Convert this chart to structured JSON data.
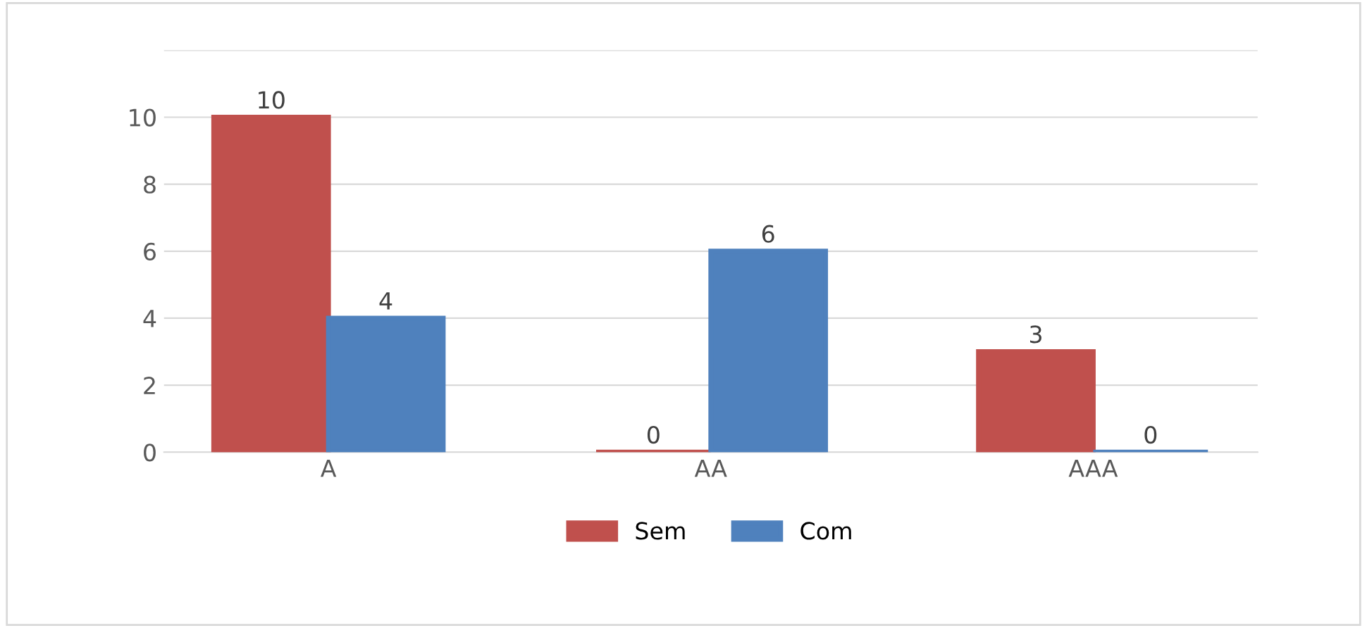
{
  "chart_data": {
    "type": "bar",
    "categories": [
      "A",
      "AA",
      "AAA"
    ],
    "series": [
      {
        "name": "Sem",
        "color": "#c0504d",
        "values": [
          10,
          0,
          3
        ]
      },
      {
        "name": "Com",
        "color": "#4f81bd",
        "values": [
          4,
          6,
          0
        ]
      }
    ],
    "ylim": [
      0,
      12
    ],
    "yticks": [
      0,
      2,
      4,
      6,
      8,
      10,
      {
        "value": 12,
        "label": null
      }
    ],
    "grid": "y",
    "legend": "bottom",
    "data_labels": true
  }
}
